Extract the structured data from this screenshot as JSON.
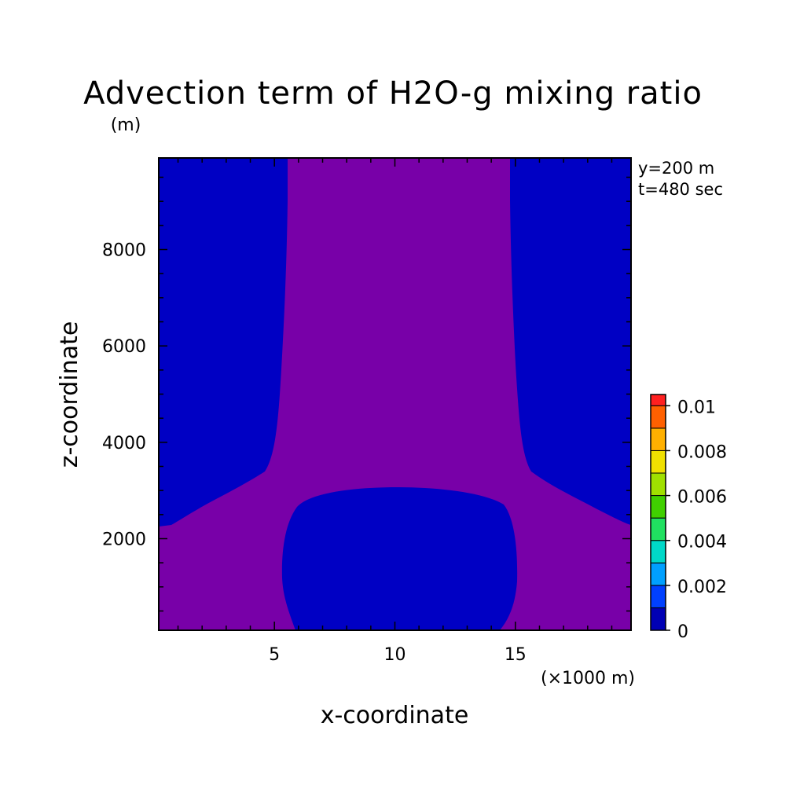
{
  "chart_data": {
    "type": "heatmap",
    "title": "Advection term of H2O-g mixing ratio",
    "ylabel_unit": "(m)",
    "xlabel": "x-coordinate",
    "ylabel": "z-coordinate",
    "x_unit": "(×1000 m)",
    "annotations": [
      "y=200 m",
      "t=480 sec"
    ],
    "xlim": [
      0.2,
      19.8
    ],
    "ylim": [
      100,
      9900
    ],
    "x_ticks": [
      5,
      10,
      15
    ],
    "y_ticks": [
      2000,
      4000,
      6000,
      8000
    ],
    "colorbar": {
      "tick_labels": [
        "0",
        "0.002",
        "0.004",
        "0.006",
        "0.008",
        "0.01"
      ],
      "tick_values": [
        0,
        0.002,
        0.004,
        0.006,
        0.008,
        0.01
      ],
      "levels": [
        0,
        0.001,
        0.002,
        0.003,
        0.004,
        0.005,
        0.006,
        0.007,
        0.008,
        0.009,
        0.01,
        0.0105
      ],
      "colors": [
        "#0000b4",
        "#0040ff",
        "#00a0ff",
        "#00d8c8",
        "#20e060",
        "#40d000",
        "#a0e000",
        "#f0e000",
        "#ffb000",
        "#ff6000",
        "#ff2020",
        "#f0a0a0"
      ]
    },
    "fill_colors": {
      "low": "#0000c4",
      "high": "#7800a8"
    }
  }
}
